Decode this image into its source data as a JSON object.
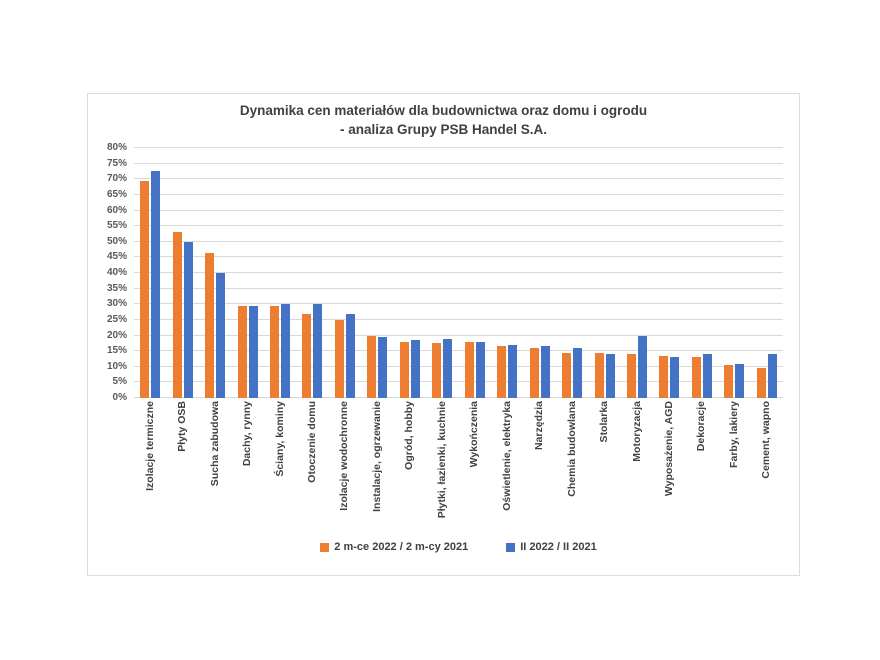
{
  "chart_data": {
    "type": "bar",
    "title": "Dynamika cen materiałów dla budownictwa oraz domu i ogrodu - analiza Grupy PSB Handel S.A.",
    "title_line1": "Dynamika cen materiałów dla budownictwa oraz domu i ogrodu",
    "title_line2": "- analiza Grupy PSB Handel S.A.",
    "categories": [
      "Izolacje termiczne",
      "Płyty OSB",
      "Sucha zabudowa",
      "Dachy, rynny",
      "Ściany, kominy",
      "Otoczenie domu",
      "Izolacje wodochronne",
      "Instalacje, ogrzewanie",
      "Ogród, hobby",
      "Płytki, łazienki, kuchnie",
      "Wykończenia",
      "Oświetlenie, elektryka",
      "Narzędzia",
      "Chemia budowlana",
      "Stolarka",
      "Motoryzacja",
      "Wyposażenie, AGD",
      "Dekoracje",
      "Farby, lakiery",
      "Cement, wapno"
    ],
    "series": [
      {
        "name": "2 m-ce 2022 / 2 m-cy 2021",
        "color": "#ED7D31",
        "values": [
          69.5,
          53,
          46.5,
          29.5,
          29.5,
          27,
          25,
          20,
          18,
          17.5,
          18,
          16.5,
          16,
          14.5,
          14.5,
          14,
          13.5,
          13,
          10.5,
          9.5
        ]
      },
      {
        "name": "II 2022 / II 2021",
        "color": "#4472C4",
        "values": [
          72.5,
          50,
          40,
          29.5,
          30,
          30,
          27,
          19.5,
          18.5,
          19,
          18,
          17,
          16.5,
          16,
          14,
          20,
          13,
          14,
          11,
          14
        ]
      }
    ],
    "ylim": [
      0,
      80
    ],
    "ytick_step": 5,
    "ytick_labels": [
      "0%",
      "5%",
      "10%",
      "15%",
      "20%",
      "25%",
      "30%",
      "35%",
      "40%",
      "45%",
      "50%",
      "55%",
      "60%",
      "65%",
      "70%",
      "75%",
      "80%"
    ],
    "grid": true,
    "legend_position": "bottom",
    "colors": {
      "grid": "#d9d9d9",
      "axis_text": "#595959",
      "category_text": "#404040",
      "title_text": "#404040",
      "background": "#ffffff"
    }
  }
}
